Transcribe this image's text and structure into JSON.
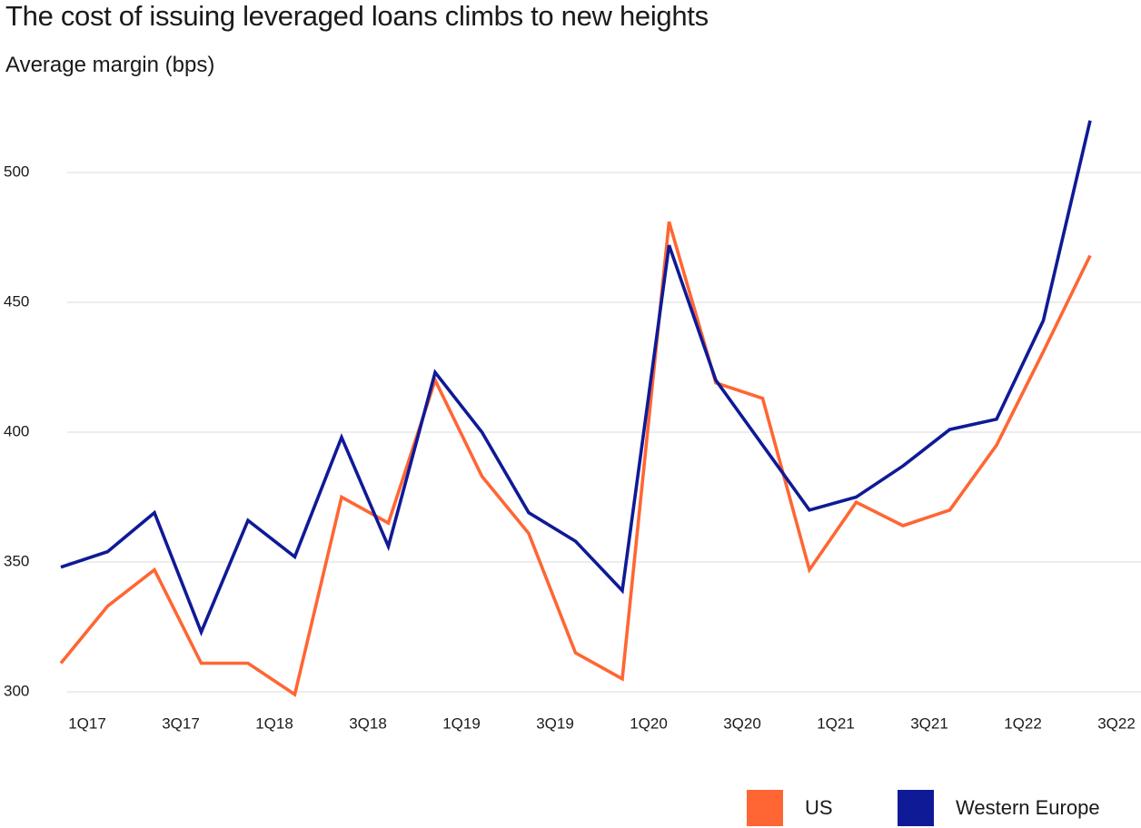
{
  "chart_data": {
    "type": "line",
    "title": "The cost of issuing leveraged loans climbs to new heights",
    "ylabel": "Average margin (bps)",
    "xlabel": "",
    "ylim": [
      300,
      520
    ],
    "yticks": [
      300,
      350,
      400,
      450,
      500
    ],
    "grid": true,
    "x": [
      "1Q17",
      "2Q17",
      "3Q17",
      "4Q17",
      "1Q18",
      "2Q18",
      "3Q18",
      "4Q18",
      "1Q19",
      "2Q19",
      "3Q19",
      "4Q19",
      "1Q20",
      "2Q20",
      "3Q20",
      "4Q20",
      "1Q21",
      "2Q21",
      "3Q21",
      "4Q21",
      "1Q22",
      "2Q22",
      "3Q22"
    ],
    "xtick_labels": [
      "1Q17",
      "3Q17",
      "1Q18",
      "3Q18",
      "1Q19",
      "3Q19",
      "1Q20",
      "3Q20",
      "1Q21",
      "3Q21",
      "1Q22",
      "3Q22"
    ],
    "legend_position": "bottom-right",
    "series": [
      {
        "name": "US",
        "color": "#ff6633",
        "values": [
          311,
          333,
          347,
          311,
          311,
          299,
          375,
          365,
          420,
          383,
          361,
          315,
          305,
          481,
          419,
          413,
          347,
          373,
          364,
          370,
          395,
          431,
          468
        ]
      },
      {
        "name": "Western Europe",
        "color": "#0f1a96",
        "values": [
          348,
          354,
          369,
          323,
          366,
          352,
          398,
          356,
          423,
          400,
          369,
          358,
          339,
          472,
          420,
          395,
          370,
          375,
          387,
          401,
          405,
          443,
          520
        ]
      }
    ]
  }
}
